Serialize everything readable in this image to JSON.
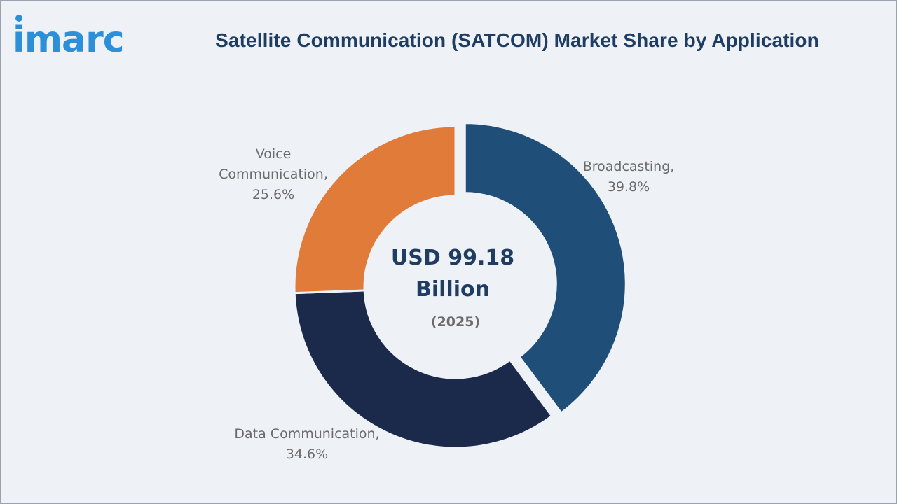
{
  "brand": {
    "logo_text": "imarc",
    "logo_color": "#2b8fd9"
  },
  "header": {
    "title": "Satellite Communication (SATCOM) Market Share by Application"
  },
  "chart_data": {
    "type": "pie",
    "subtype": "donut",
    "title": "Satellite Communication (SATCOM) Market Share by Application",
    "unit": "%",
    "center_text": {
      "value_line1": "USD 99.18",
      "value_line2": "Billion",
      "year": "(2025)"
    },
    "slices": [
      {
        "name": "Broadcasting",
        "value": 39.8,
        "label_line1": "Broadcasting,",
        "label_line2": "39.8%",
        "color": "#1f4e79",
        "exploded": true
      },
      {
        "name": "Data Communication",
        "value": 34.6,
        "label_line1": "Data Communication,",
        "label_line2": "34.6%",
        "color": "#1b2a4a",
        "exploded": false
      },
      {
        "name": "Voice Communication",
        "value": 25.6,
        "label_line1": "Voice",
        "label_line2": "Communication,",
        "label_line3": "25.6%",
        "color": "#e07b39",
        "exploded": false
      }
    ],
    "start_angle_deg": 0,
    "direction": "clockwise",
    "legend": "none"
  }
}
